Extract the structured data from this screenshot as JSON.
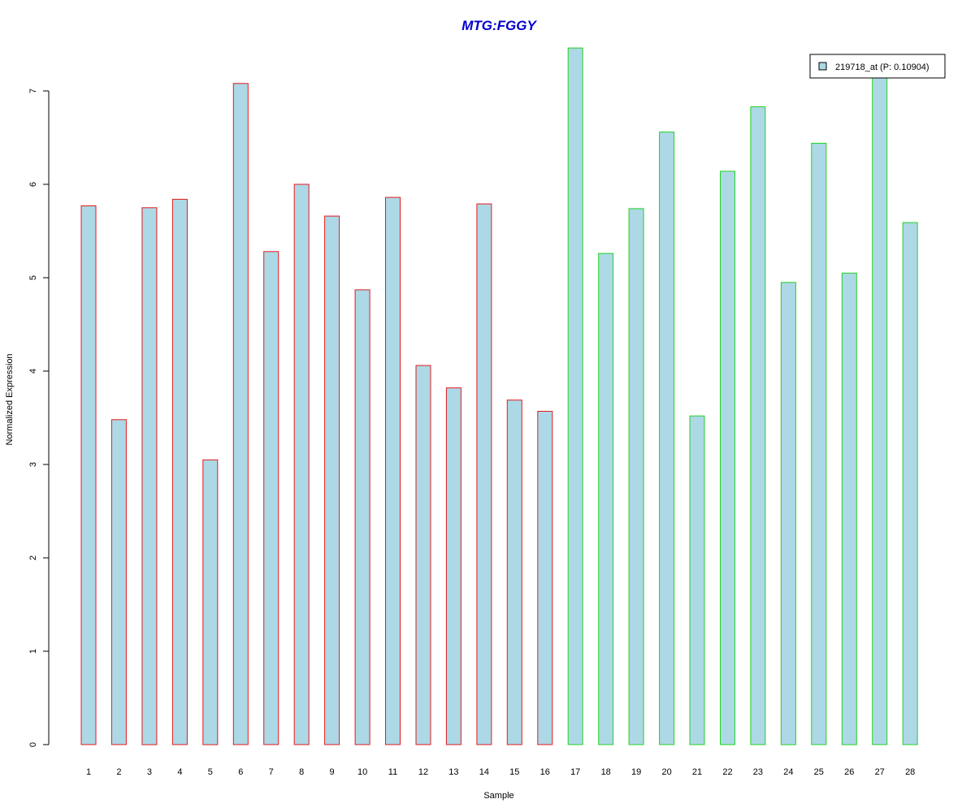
{
  "chart_data": {
    "type": "bar",
    "title": "MTG:FGGY",
    "xlabel": "Sample",
    "ylabel": "Normalized Expression",
    "categories": [
      "1",
      "2",
      "3",
      "4",
      "5",
      "6",
      "7",
      "8",
      "9",
      "10",
      "11",
      "12",
      "13",
      "14",
      "15",
      "16",
      "17",
      "18",
      "19",
      "20",
      "21",
      "22",
      "23",
      "24",
      "25",
      "26",
      "27",
      "28"
    ],
    "values": [
      5.77,
      3.48,
      5.75,
      5.84,
      3.05,
      7.08,
      5.28,
      6.0,
      5.66,
      4.87,
      5.86,
      4.06,
      3.82,
      5.79,
      3.69,
      3.57,
      7.46,
      5.26,
      5.74,
      6.56,
      3.52,
      6.14,
      6.83,
      4.95,
      6.44,
      5.05,
      7.2,
      5.59
    ],
    "groups": [
      1,
      1,
      1,
      1,
      1,
      1,
      1,
      1,
      1,
      1,
      1,
      1,
      1,
      1,
      1,
      1,
      2,
      2,
      2,
      2,
      2,
      2,
      2,
      2,
      2,
      2,
      2,
      2
    ],
    "group_colors": {
      "1": "#e31a1c",
      "2": "#21d321"
    },
    "bar_fill": "#add8e6",
    "title_color": "#0000cc",
    "ylim": [
      0,
      7.5
    ],
    "yticks": [
      0,
      1,
      2,
      3,
      4,
      5,
      6,
      7
    ],
    "grid": false,
    "legend": {
      "placement": "top-right",
      "entries": [
        {
          "label": "219718_at (P: 0.10904)",
          "color": "#add8e6"
        }
      ]
    }
  }
}
